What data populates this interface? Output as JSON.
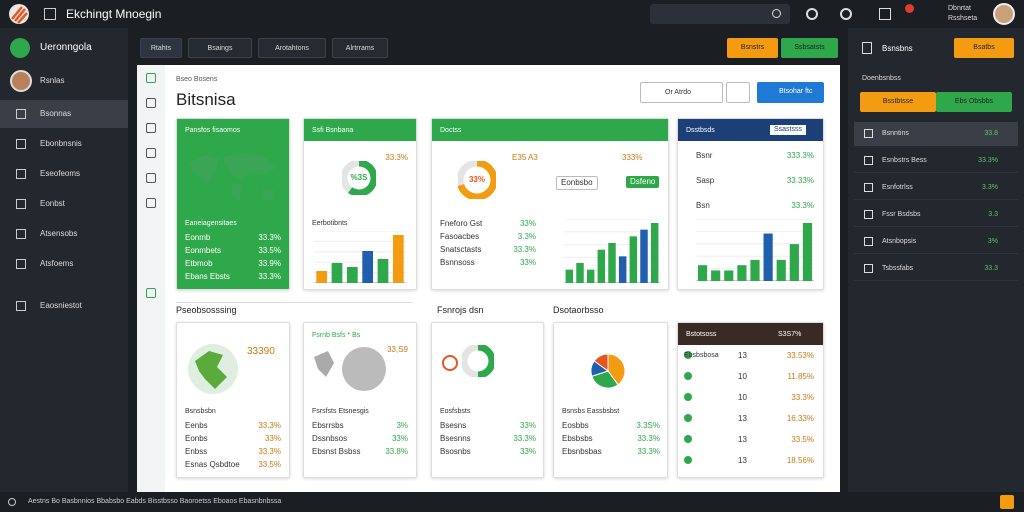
{
  "topbar": {
    "title": "Ekchingt Mnoegin",
    "user_name": "Dbnrtat",
    "user_role": "Rsshseta"
  },
  "sidebar": {
    "brand": "Ueronngola",
    "profile": "Rsnlas",
    "items": [
      "Bsonnas",
      "Ebonbnsnis",
      "Eseofeoms",
      "Eonbst",
      "Atsensobs",
      "Atsfoems",
      "Eaosniestot"
    ]
  },
  "tabs": [
    "Rtahts",
    "Bsaings",
    "Arotahtons",
    "Alrtrrams"
  ],
  "actions": [
    "Bsnstrs",
    "Ssbsatsts"
  ],
  "page": {
    "breadcrumb": "Bseo Bosens",
    "title": "Bitsnisa",
    "filter": "Or Atrdo",
    "primary": "Btsohar ftc",
    "section": "Pseobsosssing",
    "subsections": [
      "Fsnrojs dsn",
      "Dsotaorbsso"
    ]
  },
  "cards": [
    {
      "header": "Pansfos fisaomos",
      "subtitle": "Eaneiagensitaes",
      "rows": [
        [
          "Eonmb",
          "33.3%"
        ],
        [
          "Eonmbets",
          "33.5%"
        ],
        [
          "Etbmob",
          "33.9%"
        ],
        [
          "Ebans Ebsts",
          "33.3%"
        ]
      ]
    },
    {
      "header": "Ssfi Bsnbana",
      "stat": "33.3%",
      "donut": "%3S",
      "subtitle": "Eerbotibnts",
      "bars": {
        "values": [
          3,
          5,
          4,
          8,
          6,
          12
        ],
        "colors": [
          "#f39c12",
          "#2ea84a",
          "#2ea84a",
          "#1f5fae",
          "#2ea84a",
          "#f39c12"
        ]
      }
    },
    {
      "header": "Doctss",
      "donut": "33%",
      "stat": "E35 A3",
      "rows": [
        [
          "Fneforo Gst",
          "33%"
        ],
        [
          "Fasoacbes",
          "3.3%"
        ],
        [
          "Snatsctasts",
          "33.3%"
        ],
        [
          "Bsnnsoss",
          "33%"
        ]
      ],
      "stats": [
        [
          "Eonbsbo",
          "333%"
        ],
        [
          "Dsfeno",
          "33.3%"
        ]
      ],
      "bars": {
        "values": [
          2,
          3,
          2,
          5,
          6,
          4,
          7,
          8,
          9
        ],
        "colors": [
          "#2ea84a",
          "#2ea84a",
          "#2ea84a",
          "#2ea84a",
          "#2ea84a",
          "#1f5fae",
          "#2ea84a",
          "#1f5fae",
          "#2ea84a"
        ]
      }
    },
    {
      "header": "Dsstbsds",
      "badge": "Ssastsss",
      "rows": [
        [
          "Bsnr",
          "333.3%"
        ],
        [
          "Sasp",
          "33.33%"
        ],
        [
          "Bsn",
          "33.3%"
        ]
      ],
      "bars": {
        "values": [
          3,
          2,
          2,
          3,
          4,
          9,
          4,
          7,
          11
        ],
        "colors": [
          "#2ea84a",
          "#2ea84a",
          "#2ea84a",
          "#2ea84a",
          "#2ea84a",
          "#1f5fae",
          "#2ea84a",
          "#2ea84a",
          "#2ea84a"
        ]
      }
    },
    {
      "headline": "33390",
      "subtitle": "Bsnsbsbn",
      "rows": [
        [
          "Eenbs",
          "33.3%"
        ],
        [
          "Eonbs",
          "33%"
        ],
        [
          "Enbss",
          "33.3%"
        ],
        [
          "Esnas Qsbdtoe",
          "33.5%"
        ]
      ]
    },
    {
      "header": "Fsrnb Bsfs * Bs",
      "stat": "33,S9",
      "subtitle": "Fsrsfsts Etsnesgis",
      "rows": [
        [
          "Ebsrrsbs",
          "3%"
        ],
        [
          "Dssnbsos",
          "33%"
        ],
        [
          "Ebsnst Bsbss",
          "33.8%"
        ]
      ]
    },
    {
      "subtitle": "Eosfsbsts",
      "rows": [
        [
          "Bsesns",
          "33%"
        ],
        [
          "Bsesnns",
          "33.3%"
        ],
        [
          "Bsosnbs",
          "33%"
        ]
      ]
    },
    {
      "subtitle": "Bsnsbs Eassbsbst",
      "rows": [
        [
          "Eosbbs",
          "3.3S%"
        ],
        [
          "Ebsbsbs",
          "33.3%"
        ],
        [
          "Ebsnbsbas",
          "33.3%"
        ]
      ]
    },
    {
      "header": "Bstotsoss",
      "stat": "S3S7%",
      "rows": [
        [
          "Ebsbsbosa",
          "13",
          "33.53%"
        ],
        [
          "Ssabs",
          "10",
          "11.85%"
        ],
        [
          "Sssb",
          "10",
          "33.3%"
        ],
        [
          "Sbss",
          "13",
          "16.33%"
        ],
        [
          "Sbsn",
          "13",
          "33.5%"
        ],
        [
          "Sbst",
          "13",
          "18.56%"
        ]
      ]
    }
  ],
  "right": {
    "title": "Bsnsbns",
    "button": "Bsatbs",
    "subtitle": "Doenbsnbss",
    "buttons": [
      "Bsstbtsse",
      "Ebs Obsbbs"
    ],
    "items": [
      [
        "Bsnntins",
        "33.8"
      ],
      [
        "Esnbstrs Bess",
        "33.3%"
      ],
      [
        "Esnfotrlss",
        "3.3%"
      ],
      [
        "Fssr Bsdsbs",
        "3.3"
      ],
      [
        "Atsnbopsis",
        "3%"
      ],
      [
        "Tsbssfabs",
        "33.3"
      ]
    ]
  },
  "status": "Aestns Bo Basbnnios Bbabsbo Eabds Bisstbsso Baoroetss Eboaos Ebasnbnbssa"
}
